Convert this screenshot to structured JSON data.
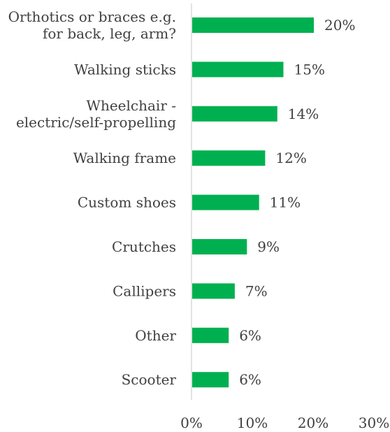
{
  "chart_data": {
    "type": "bar",
    "orientation": "horizontal",
    "categories": [
      [
        "Orthotics or braces e.g.",
        "for back, leg, arm?"
      ],
      [
        "Walking sticks"
      ],
      [
        "Wheelchair -",
        "electric/self-propelling"
      ],
      [
        "Walking frame"
      ],
      [
        "Custom shoes"
      ],
      [
        "Crutches"
      ],
      [
        "Callipers"
      ],
      [
        "Other"
      ],
      [
        "Scooter"
      ]
    ],
    "values": [
      20,
      15,
      14,
      12,
      11,
      9,
      7,
      6,
      6
    ],
    "data_labels": [
      "20%",
      "15%",
      "14%",
      "12%",
      "11%",
      "9%",
      "7%",
      "6%",
      "6%"
    ],
    "xlim": [
      0,
      30
    ],
    "x_ticks": [
      0,
      10,
      20,
      30
    ],
    "x_tick_labels": [
      "0%",
      "10%",
      "20%",
      "30%"
    ],
    "bar_color": "#00b050",
    "axis_color": "#d9d9d9",
    "grid": false,
    "legend": "none",
    "title": "",
    "xlabel": "",
    "ylabel": ""
  }
}
